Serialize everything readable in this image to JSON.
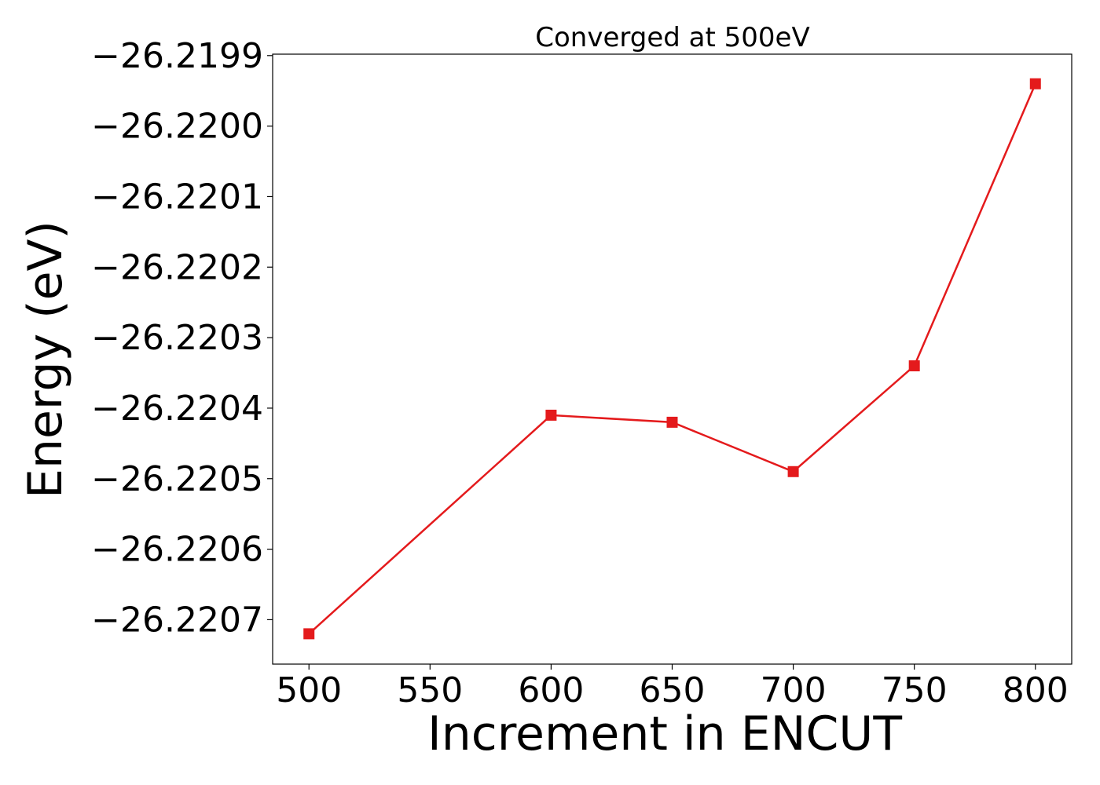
{
  "chart_data": {
    "type": "line",
    "title": "Converged at 500eV",
    "xlabel": "Increment in ENCUT",
    "ylabel": "Energy (eV)",
    "x": [
      500,
      600,
      650,
      700,
      750,
      800
    ],
    "series": [
      {
        "values": [
          -26.22072,
          -26.22041,
          -26.22042,
          -26.22049,
          -26.22034,
          -26.21994
        ],
        "color": "#e41a1c",
        "marker": "square"
      }
    ],
    "xlim": [
      485,
      815
    ],
    "ylim": [
      -26.220763,
      -26.219898
    ],
    "x_ticks": [
      500,
      550,
      600,
      650,
      700,
      750,
      800
    ],
    "x_tick_labels": [
      "500",
      "550",
      "600",
      "650",
      "700",
      "750",
      "800"
    ],
    "y_ticks": [
      -26.2199,
      -26.22,
      -26.2201,
      -26.2202,
      -26.2203,
      -26.2204,
      -26.2205,
      -26.2206,
      -26.2207
    ],
    "y_tick_labels": [
      "−26.2199",
      "−26.2200",
      "−26.2201",
      "−26.2202",
      "−26.2203",
      "−26.2204",
      "−26.2205",
      "−26.2206",
      "−26.2207"
    ],
    "grid": false,
    "legend": "none"
  }
}
